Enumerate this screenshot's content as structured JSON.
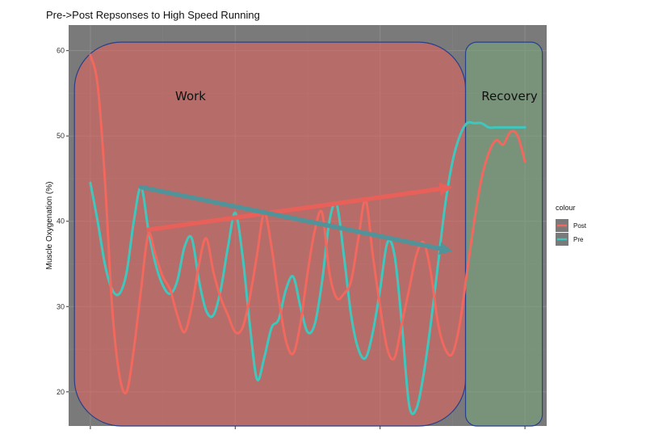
{
  "chart_data": {
    "type": "line",
    "title": "Pre->Post Repsonses to High Speed Running",
    "xlabel": "",
    "ylabel": "Muscle Oxygenation (%)",
    "ylim": [
      16,
      63
    ],
    "yticks": [
      20,
      30,
      40,
      50,
      60
    ],
    "grid": true,
    "legend": {
      "title": "colour",
      "placement": "right"
    },
    "regions": [
      {
        "label": "Work",
        "color": "#e8605a",
        "x_range": [
          -1.1,
          25.9
        ],
        "y_range": [
          16,
          61
        ]
      },
      {
        "label": "Recovery",
        "color": "#79a87c",
        "x_range": [
          25.9,
          31.2
        ],
        "y_range": [
          16,
          61
        ]
      }
    ],
    "arrows": [
      {
        "series": "Post",
        "color": "#e8605a",
        "from": [
          4,
          39
        ],
        "to": [
          25,
          44
        ]
      },
      {
        "series": "Pre",
        "color": "#52939a",
        "from": [
          3.5,
          44
        ],
        "to": [
          25,
          36.5
        ]
      }
    ],
    "x": [
      0,
      0.5,
      1,
      1.5,
      2,
      2.5,
      3,
      3.5,
      4,
      4.5,
      5,
      5.5,
      6,
      6.5,
      7,
      7.5,
      8,
      8.5,
      9,
      9.5,
      10,
      10.5,
      11,
      11.5,
      12,
      12.5,
      13,
      13.5,
      14,
      14.5,
      15,
      15.5,
      16,
      16.5,
      17,
      17.5,
      18,
      18.5,
      19,
      19.5,
      20,
      20.5,
      21,
      21.5,
      22,
      22.5,
      23,
      23.5,
      24,
      24.5,
      25,
      25.5,
      26,
      26.5,
      27,
      27.5,
      28,
      28.5,
      29,
      29.5,
      30
    ],
    "series": [
      {
        "name": "Post",
        "color": "#f0685e",
        "values": [
          59.5,
          56,
          45,
          30,
          22,
          20,
          25,
          32,
          38.5,
          36,
          33.5,
          32,
          29,
          27,
          30,
          35,
          38,
          34,
          31,
          29,
          27,
          27.5,
          31,
          36,
          41,
          37,
          31,
          26,
          24.5,
          28,
          34,
          39,
          41,
          34,
          31,
          31.5,
          33,
          38,
          42.5,
          36,
          30,
          25,
          24,
          28,
          32,
          36,
          37.5,
          34,
          28,
          25,
          24.5,
          28,
          34,
          40,
          45,
          48,
          49.5,
          49,
          50.5,
          50,
          47
        ]
      },
      {
        "name": "Pre",
        "color": "#3fc7bd",
        "values": [
          44.5,
          40,
          35,
          32,
          31.5,
          34,
          40,
          44,
          39,
          35,
          32.5,
          31.5,
          33,
          37,
          38,
          33,
          29.5,
          29,
          32,
          37,
          41,
          36,
          28,
          21.5,
          24,
          27.5,
          28.5,
          32,
          33.5,
          30,
          27,
          28,
          33,
          40,
          42,
          36,
          29,
          25,
          24,
          27,
          32,
          37.5,
          36,
          28,
          18.5,
          18,
          22,
          28,
          35,
          42,
          47,
          50,
          51.5,
          51.5,
          51.5,
          51,
          51,
          51,
          51,
          51,
          51
        ]
      }
    ]
  }
}
